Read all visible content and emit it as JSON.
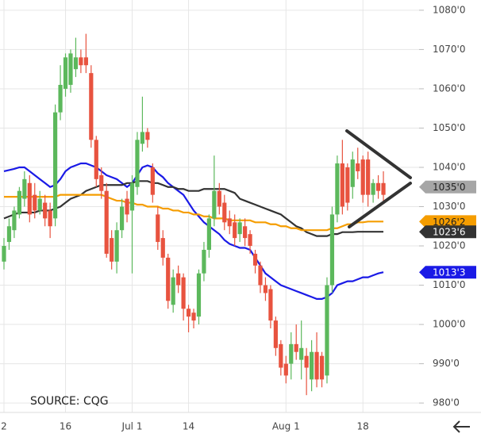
{
  "chart_data": {
    "type": "candlestick",
    "source": "SOURCE: CQG",
    "categories": [
      "2",
      null,
      null,
      null,
      null,
      null,
      null,
      null,
      null,
      null,
      null,
      null,
      "16",
      null,
      null,
      null,
      null,
      null,
      null,
      null,
      null,
      null,
      null,
      null,
      null,
      "Jul 1",
      null,
      null,
      null,
      null,
      null,
      null,
      null,
      null,
      null,
      null,
      "14",
      null,
      null,
      null,
      null,
      null,
      null,
      null,
      null,
      null,
      null,
      null,
      null,
      null,
      null,
      null,
      null,
      null,
      null,
      "Aug 1",
      null,
      null,
      null,
      null,
      null,
      null,
      null,
      null,
      null,
      null,
      null,
      null,
      null,
      null,
      "18",
      null,
      null,
      null,
      null
    ],
    "open": [
      1016,
      1021,
      1024,
      1028,
      1032,
      1036,
      1033,
      1029,
      1031,
      1029,
      1027,
      1054,
      1060,
      1061,
      1065,
      1068,
      1068,
      1064,
      1047,
      1038,
      1034,
      1022,
      1016,
      1024,
      1032,
      1029,
      1035,
      1046,
      1049,
      1040,
      1028,
      1022,
      1017,
      1005,
      1013,
      1012,
      1004,
      1003,
      1002,
      1013,
      1019,
      1027,
      1034,
      1031,
      1027,
      1026,
      1023,
      1025,
      1023,
      1018,
      1015,
      1010,
      1009,
      1001,
      995,
      990,
      990,
      995,
      991,
      992,
      986,
      993,
      992,
      987,
      1010,
      1028,
      1041,
      1040,
      1035,
      1041,
      1042,
      1042,
      1033,
      1036,
      1036
    ],
    "high": [
      1022,
      1027,
      1030,
      1035,
      1039,
      1038,
      1036,
      1034,
      1033,
      1031,
      1056,
      1066,
      1069,
      1070,
      1073,
      1070,
      1074,
      1066,
      1048,
      1040,
      1036,
      1024,
      1026,
      1032,
      1034,
      1038,
      1049,
      1058,
      1050,
      1041,
      1030,
      1024,
      1018,
      1014,
      1015,
      1013,
      1005,
      1004,
      1014,
      1021,
      1028,
      1043,
      1036,
      1033,
      1029,
      1028,
      1027,
      1027,
      1024,
      1019,
      1016,
      1012,
      1010,
      1002,
      996,
      992,
      998,
      1000,
      1001,
      994,
      996,
      998,
      993,
      1012,
      1030,
      1043,
      1047,
      1041,
      1044,
      1045,
      1043,
      1044,
      1037,
      1038,
      1039
    ],
    "low": [
      1014,
      1019,
      1022,
      1027,
      1030,
      1026,
      1027,
      1028,
      1025,
      1022,
      1025,
      1052,
      1058,
      1059,
      1063,
      1064,
      1064,
      1045,
      1035,
      1032,
      1017,
      1014,
      1013,
      1022,
      1026,
      1013,
      1033,
      1044,
      1045,
      1031,
      1019,
      1015,
      1004,
      1003,
      1008,
      1001,
      998,
      999,
      1000,
      1011,
      1017,
      1025,
      1028,
      1024,
      1023,
      1020,
      1021,
      1020,
      1018,
      1013,
      1008,
      1006,
      999,
      992,
      987,
      985,
      986,
      991,
      986,
      982,
      983,
      984,
      984,
      985,
      1008,
      1026,
      1028,
      1029,
      1032,
      1037,
      1031,
      1030,
      1031,
      1032,
      1031
    ],
    "close": [
      1020,
      1025,
      1029,
      1034,
      1037,
      1028,
      1029,
      1032,
      1027,
      1025,
      1054,
      1061,
      1068,
      1069,
      1068,
      1066,
      1066,
      1047,
      1037,
      1034,
      1018,
      1016,
      1024,
      1030,
      1028,
      1036,
      1047,
      1049,
      1047,
      1033,
      1021,
      1017,
      1006,
      1012,
      1010,
      1004,
      1002,
      1001,
      1013,
      1019,
      1027,
      1034,
      1030,
      1026,
      1025,
      1022,
      1026,
      1022,
      1020,
      1015,
      1010,
      1008,
      1001,
      994,
      989,
      987,
      995,
      993,
      994,
      989,
      993,
      986,
      986,
      1010,
      1028,
      1041,
      1030,
      1031,
      1042,
      1039,
      1033,
      1033,
      1036,
      1034,
      1033
    ],
    "up_color": "#5cb85c",
    "down_color": "#e8533f",
    "lines": [
      {
        "color": "#1a1ae6",
        "values": [
          1039,
          1039.3,
          1039.6,
          1040,
          1040,
          1039,
          1038,
          1037,
          1036,
          1035,
          1035.5,
          1037,
          1039,
          1040,
          1040.5,
          1041,
          1041,
          1040.5,
          1040,
          1039,
          1038,
          1037.5,
          1037,
          1036,
          1035,
          1036,
          1038,
          1040,
          1040.5,
          1040,
          1038.5,
          1037.5,
          1036,
          1035,
          1034,
          1033,
          1031,
          1029,
          1027.5,
          1026,
          1025,
          1024,
          1023,
          1021.5,
          1020.5,
          1020,
          1019.5,
          1019.5,
          1019,
          1017,
          1015,
          1013,
          1012,
          1011,
          1010,
          1009.5,
          1009,
          1008.5,
          1008,
          1007.5,
          1007,
          1006.5,
          1006.5,
          1007,
          1008,
          1010,
          1010.5,
          1011,
          1011,
          1011.5,
          1012,
          1012,
          1012.5,
          1013,
          1013.3
        ]
      },
      {
        "color": "#333333",
        "values": [
          1027,
          1027.5,
          1028,
          1028.5,
          1028.5,
          1028.5,
          1028.5,
          1029,
          1029,
          1029,
          1029.5,
          1030,
          1031,
          1032,
          1032.5,
          1033,
          1034,
          1034.5,
          1035,
          1035.5,
          1035.5,
          1035.5,
          1035.5,
          1035.5,
          1036,
          1036,
          1036.5,
          1036.5,
          1036.5,
          1036,
          1036,
          1035.5,
          1035,
          1035,
          1034.5,
          1034.5,
          1034,
          1034,
          1034,
          1034.5,
          1034.5,
          1034.5,
          1034.5,
          1034.5,
          1034,
          1033.5,
          1032,
          1031.5,
          1031,
          1030.5,
          1030,
          1029.5,
          1029,
          1028.5,
          1028,
          1027,
          1026,
          1025,
          1024.5,
          1023.5,
          1023,
          1022.5,
          1022.5,
          1022.5,
          1023,
          1023,
          1023.5,
          1023.5,
          1023.5,
          1023.6,
          1023.6,
          1023.6,
          1023.6,
          1023.6,
          1023.6
        ]
      },
      {
        "color": "#f59d00",
        "values": [
          1032.5,
          1032.5,
          1032.5,
          1032.5,
          1032.5,
          1032.5,
          1032.5,
          1032.5,
          1032.5,
          1032.5,
          1032.5,
          1033,
          1033,
          1033,
          1033,
          1033,
          1033,
          1033,
          1033,
          1033,
          1032.5,
          1032,
          1031.5,
          1031.5,
          1031,
          1031,
          1030.5,
          1030.5,
          1030,
          1030,
          1030,
          1029.5,
          1029.5,
          1029,
          1029,
          1028.5,
          1028.5,
          1028,
          1028,
          1027.5,
          1027.5,
          1027,
          1027,
          1027,
          1026.5,
          1026.5,
          1026.5,
          1026.5,
          1026.5,
          1026,
          1026,
          1026,
          1025.5,
          1025.5,
          1025,
          1025,
          1024.5,
          1024.5,
          1024,
          1024,
          1024,
          1024,
          1024,
          1024,
          1024.5,
          1024.5,
          1025,
          1025.5,
          1025.5,
          1026,
          1026,
          1026.2,
          1026.2,
          1026.2,
          1026.2
        ]
      }
    ],
    "price_labels": [
      {
        "value": 1035,
        "label": "1035'0",
        "color": "#a6a6a6",
        "text_color": "#222222"
      },
      {
        "value": 1026.2,
        "label": "1026'2",
        "color": "#f59d00",
        "text_color": "#222222"
      },
      {
        "value": 1023.6,
        "label": "1023'6",
        "color": "#333333",
        "text_color": "#ffffff"
      },
      {
        "value": 1013.3,
        "label": "1013'3",
        "color": "#1a1ae6",
        "text_color": "#ffffff"
      }
    ],
    "ylim": [
      978,
      1082
    ],
    "yticks": [
      {
        "value": 980,
        "label": "980'0"
      },
      {
        "value": 990,
        "label": "990'0"
      },
      {
        "value": 1000,
        "label": "1000'0"
      },
      {
        "value": 1010,
        "label": "1010'0"
      },
      {
        "value": 1020,
        "label": "1020'0"
      },
      {
        "value": 1030,
        "label": "1030'0"
      },
      {
        "value": 1040,
        "label": "1040'0"
      },
      {
        "value": 1050,
        "label": "1050'0"
      },
      {
        "value": 1060,
        "label": "1060'0"
      },
      {
        "value": 1070,
        "label": "1070'0"
      },
      {
        "value": 1080,
        "label": "1080'0"
      }
    ],
    "grid": true
  }
}
